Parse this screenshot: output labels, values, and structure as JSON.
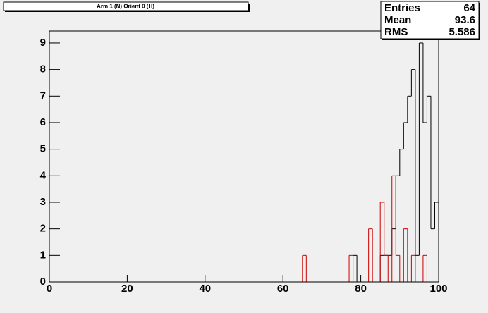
{
  "chart_data": {
    "type": "histogram",
    "title": "Arm 1 (N) Orient 0 (H)",
    "bins": [
      0,
      1,
      2,
      3,
      4,
      5,
      6,
      7,
      8,
      9,
      10,
      11,
      12,
      13,
      14,
      15,
      16,
      17,
      18,
      19,
      20,
      21,
      22,
      23,
      24,
      25,
      26,
      27,
      28,
      29,
      30,
      31,
      32,
      33,
      34,
      35,
      36,
      37,
      38,
      39,
      40,
      41,
      42,
      43,
      44,
      45,
      46,
      47,
      48,
      49,
      50,
      51,
      52,
      53,
      54,
      55,
      56,
      57,
      58,
      59,
      60,
      61,
      62,
      63,
      64,
      65,
      66,
      67,
      68,
      69,
      70,
      71,
      72,
      73,
      74,
      75,
      76,
      77,
      78,
      79,
      80,
      81,
      82,
      83,
      84,
      85,
      86,
      87,
      88,
      89,
      90,
      91,
      92,
      93,
      94,
      95,
      96,
      97,
      98,
      99,
      100
    ],
    "series": [
      {
        "color": "#000000",
        "values": [
          0,
          0,
          0,
          0,
          0,
          0,
          0,
          0,
          0,
          0,
          0,
          0,
          0,
          0,
          0,
          0,
          0,
          0,
          0,
          0,
          0,
          0,
          0,
          0,
          0,
          0,
          0,
          0,
          0,
          0,
          0,
          0,
          0,
          0,
          0,
          0,
          0,
          0,
          0,
          0,
          0,
          0,
          0,
          0,
          0,
          0,
          0,
          0,
          0,
          0,
          0,
          0,
          0,
          0,
          0,
          0,
          0,
          0,
          0,
          0,
          0,
          0,
          0,
          0,
          0,
          0,
          0,
          0,
          0,
          0,
          0,
          0,
          0,
          0,
          0,
          0,
          0,
          0,
          1,
          0,
          0,
          0,
          0,
          0,
          0,
          1,
          1,
          1,
          2,
          4,
          5,
          6,
          7,
          8,
          1,
          9,
          6,
          7,
          2,
          3
        ]
      },
      {
        "color": "#cc0000",
        "values": [
          0,
          0,
          0,
          0,
          0,
          0,
          0,
          0,
          0,
          0,
          0,
          0,
          0,
          0,
          0,
          0,
          0,
          0,
          0,
          0,
          0,
          0,
          0,
          0,
          0,
          0,
          0,
          0,
          0,
          0,
          0,
          0,
          0,
          0,
          0,
          0,
          0,
          0,
          0,
          0,
          0,
          0,
          0,
          0,
          0,
          0,
          0,
          0,
          0,
          0,
          0,
          0,
          0,
          0,
          0,
          0,
          0,
          0,
          0,
          0,
          0,
          0,
          0,
          0,
          0,
          1,
          0,
          0,
          0,
          0,
          0,
          0,
          0,
          0,
          0,
          0,
          0,
          1,
          0,
          0,
          0,
          0,
          2,
          0,
          0,
          3,
          1,
          0,
          4,
          1,
          0,
          2,
          0,
          1,
          0,
          0,
          1,
          0,
          0,
          0
        ]
      }
    ],
    "xlim": [
      0,
      100
    ],
    "xticks": [
      0,
      20,
      40,
      60,
      80,
      100
    ],
    "ylim": [
      0,
      9.45
    ],
    "yticks": [
      0,
      1,
      2,
      3,
      4,
      5,
      6,
      7,
      8,
      9
    ],
    "stats": {
      "labels": [
        "Entries",
        "Mean",
        "RMS"
      ],
      "values": [
        64,
        93.6,
        5.586
      ]
    }
  }
}
